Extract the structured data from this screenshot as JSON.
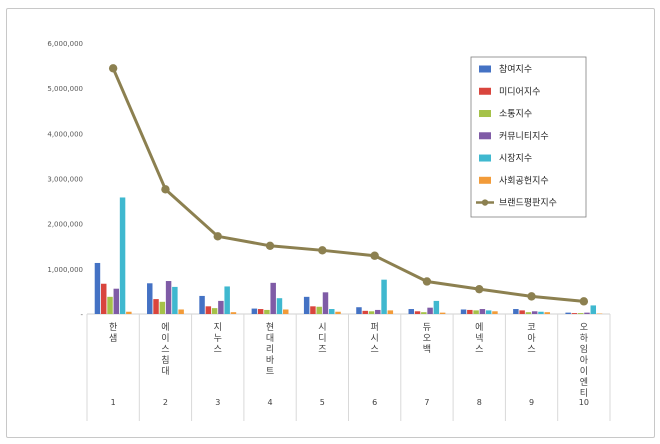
{
  "chart_data": {
    "type": "bar",
    "categories": [
      "한샘",
      "에이스침대",
      "지누스",
      "현대리바트",
      "시디즈",
      "퍼시스",
      "듀오백",
      "에넥스",
      "코아스",
      "오하임아이엔티"
    ],
    "category_numbers": [
      "1",
      "2",
      "3",
      "4",
      "5",
      "6",
      "7",
      "8",
      "9",
      "10"
    ],
    "ylim": [
      0,
      6000000
    ],
    "yticks": [
      0,
      1000000,
      2000000,
      3000000,
      4000000,
      5000000,
      6000000
    ],
    "ytick_labels": [
      "-",
      "1,000,000",
      "2,000,000",
      "3,000,000",
      "4,000,000",
      "5,000,000",
      "6,000,000"
    ],
    "grid": false,
    "legend_position": "top-right",
    "series": [
      {
        "name": "참여지수",
        "type": "bar",
        "color": "#4472c4",
        "values": [
          1130000,
          680000,
          400000,
          120000,
          380000,
          150000,
          110000,
          100000,
          110000,
          30000
        ]
      },
      {
        "name": "미디어지수",
        "type": "bar",
        "color": "#d9453d",
        "values": [
          670000,
          330000,
          170000,
          110000,
          170000,
          70000,
          60000,
          90000,
          80000,
          20000
        ]
      },
      {
        "name": "소통지수",
        "type": "bar",
        "color": "#a5c249",
        "values": [
          380000,
          270000,
          130000,
          90000,
          160000,
          60000,
          40000,
          80000,
          40000,
          20000
        ]
      },
      {
        "name": "커뮤니티지수",
        "type": "bar",
        "color": "#7f5ba6",
        "values": [
          560000,
          730000,
          290000,
          690000,
          480000,
          90000,
          140000,
          110000,
          60000,
          30000
        ]
      },
      {
        "name": "시장지수",
        "type": "bar",
        "color": "#3fb8cf",
        "values": [
          2580000,
          600000,
          610000,
          350000,
          110000,
          760000,
          290000,
          80000,
          50000,
          190000
        ]
      },
      {
        "name": "사회공헌지수",
        "type": "bar",
        "color": "#f29b39",
        "values": [
          50000,
          100000,
          40000,
          100000,
          50000,
          80000,
          30000,
          60000,
          40000,
          10000
        ]
      },
      {
        "name": "브랜드평판지수",
        "type": "line",
        "color": "#8c8050",
        "values": [
          5440000,
          2760000,
          1720000,
          1510000,
          1410000,
          1290000,
          720000,
          550000,
          390000,
          280000
        ]
      }
    ]
  }
}
